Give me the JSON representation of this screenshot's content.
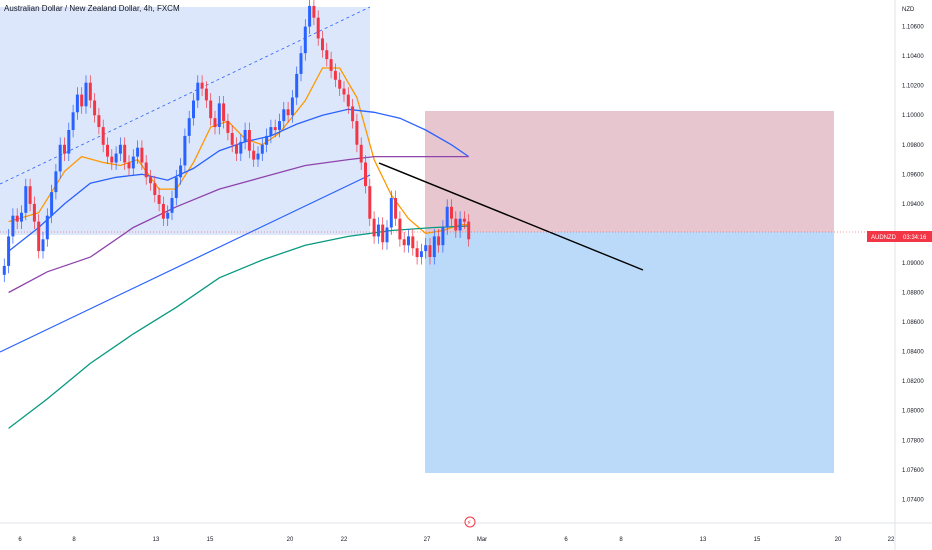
{
  "header": {
    "symbol_title": "Australian Dollar / New Zealand Dollar, 4h, FXCM"
  },
  "axis": {
    "currency": "NZD"
  },
  "price_badge": {
    "symbol": "AUDNZD",
    "countdown": "03:34:16"
  },
  "colors": {
    "bull": "#2962ff",
    "bear": "#f23645",
    "ema_fast": "#ff9800",
    "ema_mid": "#2962ff",
    "ema_slow": "#8e44ad",
    "ema_long": "#089981",
    "channel_fill": "#dbe6fb",
    "stop_zone": "#e8c6cf",
    "target_zone": "#bbdafa",
    "trendline": "#000000",
    "price_line": "#f23645"
  },
  "chart_data": {
    "type": "candlestick",
    "title": "Australian Dollar / New Zealand Dollar, 4h, FXCM",
    "ylabel": "NZD",
    "ylim": [
      1.0724,
      1.1078
    ],
    "y_ticks": [
      "1.10600",
      "1.10400",
      "1.10200",
      "1.10000",
      "1.09800",
      "1.09600",
      "1.09400",
      "1.09200",
      "1.09000",
      "1.08800",
      "1.08600",
      "1.08400",
      "1.08200",
      "1.08000",
      "1.07800",
      "1.07600",
      "1.07400"
    ],
    "x_ticks": [
      "6",
      "8",
      "13",
      "15",
      "20",
      "22",
      "27",
      "Mar",
      "6",
      "8",
      "13",
      "15",
      "20",
      "22"
    ],
    "last_price": 1.0916,
    "candles_close": [
      1.0898,
      1.0918,
      1.0932,
      1.0928,
      1.0934,
      1.0952,
      1.094,
      1.0928,
      1.0908,
      1.0916,
      1.0932,
      1.0948,
      1.0962,
      1.098,
      1.0974,
      1.099,
      1.1002,
      1.1014,
      1.1006,
      1.1022,
      1.101,
      1.1,
      1.0992,
      1.098,
      1.0972,
      1.0968,
      1.0974,
      1.098,
      1.0968,
      1.0964,
      1.0972,
      1.0978,
      1.0968,
      1.0958,
      1.0954,
      1.0946,
      1.094,
      1.093,
      1.0934,
      1.0944,
      1.0958,
      1.0966,
      1.0986,
      1.0998,
      1.101,
      1.1022,
      1.1018,
      1.101,
      1.0998,
      1.0992,
      1.1008,
      1.0996,
      1.0988,
      1.098,
      1.0974,
      1.0982,
      1.099,
      1.0976,
      1.097,
      1.0974,
      1.098,
      1.0986,
      1.0992,
      1.099,
      1.0996,
      1.1004,
      1.1,
      1.1012,
      1.1028,
      1.1042,
      1.106,
      1.1074,
      1.1066,
      1.1052,
      1.1044,
      1.1038,
      1.103,
      1.1024,
      1.1018,
      1.1014,
      1.1006,
      1.0996,
      1.098,
      1.0968,
      1.0952,
      1.093,
      1.0918,
      1.0926,
      1.0914,
      1.0924,
      1.0944,
      1.093,
      1.0916,
      1.0912,
      1.0918,
      1.091,
      1.0904,
      1.0908,
      1.0912,
      1.0904,
      1.0918,
      1.0912,
      1.0924,
      1.0938,
      1.093,
      1.0922,
      1.093,
      1.0928,
      1.0916
    ],
    "series": [
      {
        "name": "EMA fast",
        "values": [
          [
            1,
            1.0928
          ],
          [
            8,
            1.0934
          ],
          [
            14,
            1.0962
          ],
          [
            18,
            1.0972
          ],
          [
            23,
            1.0968
          ],
          [
            27,
            1.0966
          ],
          [
            31,
            1.097
          ],
          [
            36,
            1.095
          ],
          [
            40,
            1.095
          ],
          [
            44,
            1.0968
          ],
          [
            48,
            1.0992
          ],
          [
            52,
            1.0996
          ],
          [
            56,
            1.0984
          ],
          [
            60,
            1.098
          ],
          [
            64,
            1.0988
          ],
          [
            70,
            1.101
          ],
          [
            74,
            1.1032
          ],
          [
            78,
            1.1032
          ],
          [
            82,
            1.1012
          ],
          [
            86,
            1.097
          ],
          [
            90,
            1.0946
          ],
          [
            94,
            1.093
          ],
          [
            98,
            1.092
          ],
          [
            102,
            1.0922
          ],
          [
            106,
            1.0926
          ],
          [
            108,
            1.0926
          ]
        ]
      },
      {
        "name": "EMA mid",
        "values": [
          [
            1,
            1.0908
          ],
          [
            8,
            1.0924
          ],
          [
            14,
            1.094
          ],
          [
            20,
            1.0954
          ],
          [
            26,
            1.0958
          ],
          [
            32,
            1.096
          ],
          [
            38,
            1.0956
          ],
          [
            44,
            1.0964
          ],
          [
            50,
            1.0976
          ],
          [
            56,
            1.0982
          ],
          [
            62,
            1.0986
          ],
          [
            68,
            1.0994
          ],
          [
            74,
            1.1
          ],
          [
            80,
            1.1004
          ],
          [
            86,
            1.1002
          ],
          [
            92,
            1.0998
          ],
          [
            98,
            1.099
          ],
          [
            104,
            1.098
          ],
          [
            108,
            1.0972
          ]
        ]
      },
      {
        "name": "EMA slow",
        "values": [
          [
            1,
            1.088
          ],
          [
            10,
            1.0894
          ],
          [
            20,
            1.0904
          ],
          [
            30,
            1.0924
          ],
          [
            40,
            1.0938
          ],
          [
            50,
            1.095
          ],
          [
            60,
            1.0958
          ],
          [
            70,
            1.0966
          ],
          [
            80,
            1.097
          ],
          [
            86,
            1.0972
          ],
          [
            94,
            1.0972
          ],
          [
            102,
            1.0972
          ],
          [
            108,
            1.0972
          ]
        ]
      },
      {
        "name": "EMA long",
        "values": [
          [
            1,
            1.0788
          ],
          [
            10,
            1.0808
          ],
          [
            20,
            1.0832
          ],
          [
            30,
            1.0852
          ],
          [
            40,
            1.087
          ],
          [
            50,
            1.089
          ],
          [
            60,
            1.0902
          ],
          [
            70,
            1.0912
          ],
          [
            80,
            1.0918
          ],
          [
            90,
            1.0922
          ],
          [
            100,
            1.0924
          ],
          [
            108,
            1.0925
          ]
        ]
      }
    ]
  }
}
